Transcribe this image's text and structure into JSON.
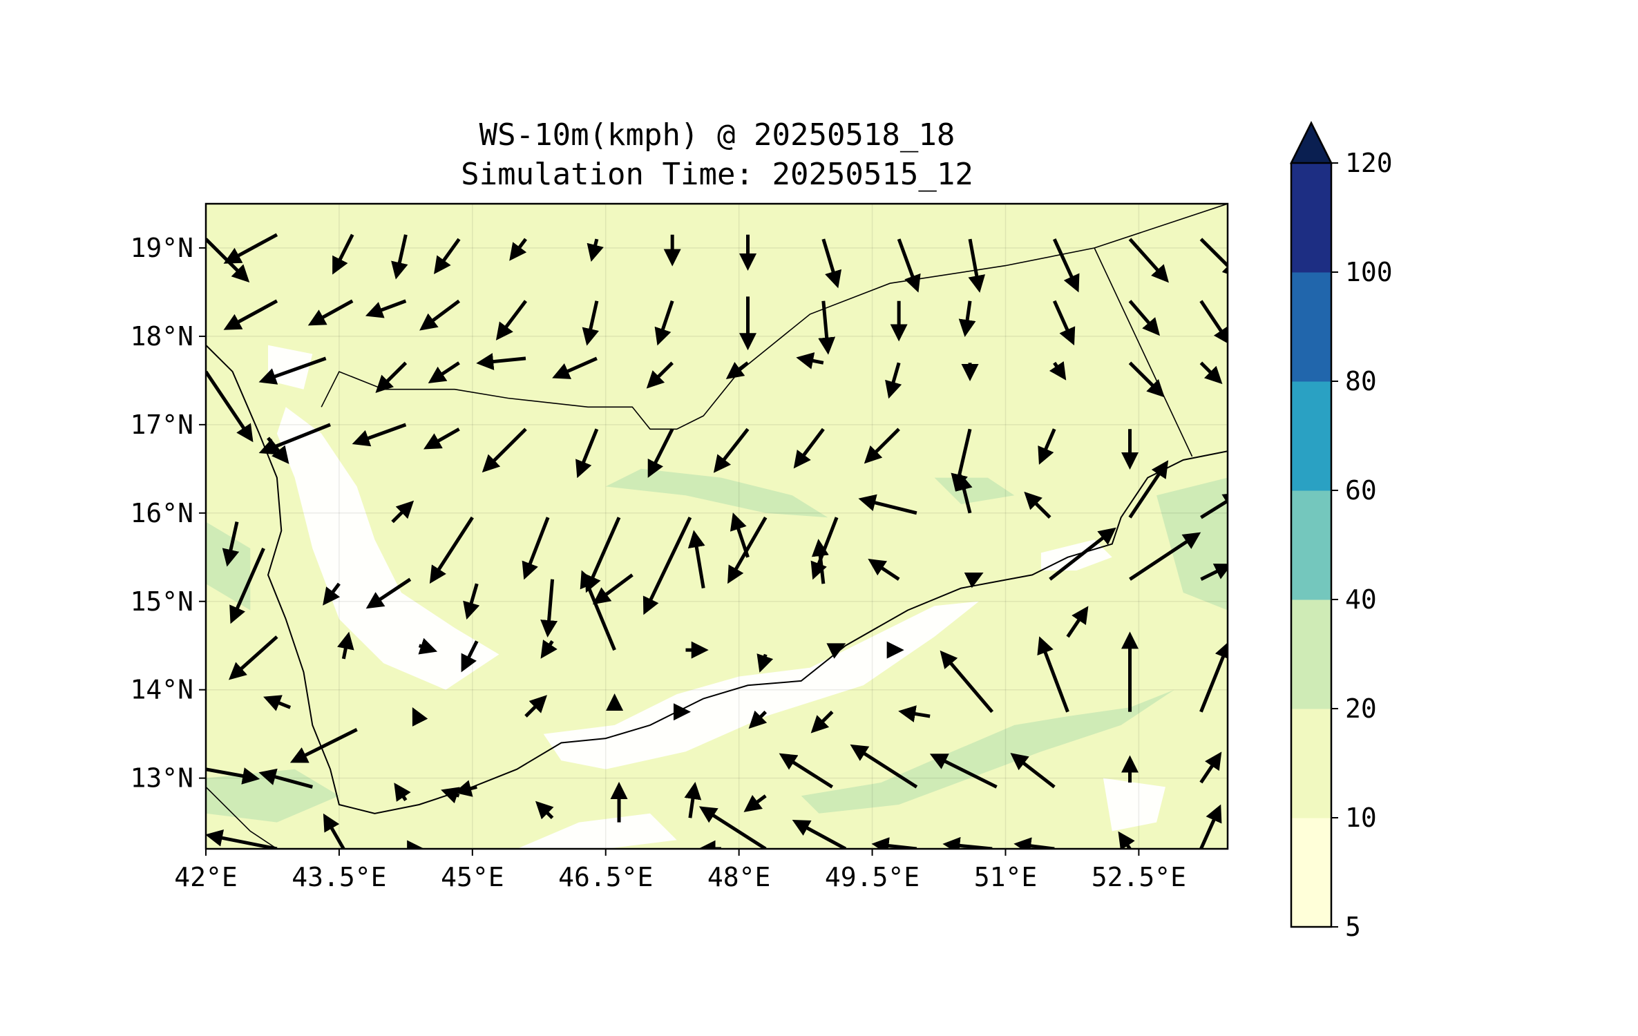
{
  "title": {
    "line1": "WS-10m(kmph) @ 20250518_18",
    "line2": "Simulation Time: 20250515_12"
  },
  "map": {
    "lon_range": [
      42.0,
      53.5
    ],
    "lat_range": [
      12.2,
      19.5
    ],
    "x_ticks": [
      {
        "value": 42.0,
        "label": "42°E"
      },
      {
        "value": 43.5,
        "label": "43.5°E"
      },
      {
        "value": 45.0,
        "label": "45°E"
      },
      {
        "value": 46.5,
        "label": "46.5°E"
      },
      {
        "value": 48.0,
        "label": "48°E"
      },
      {
        "value": 49.5,
        "label": "49.5°E"
      },
      {
        "value": 51.0,
        "label": "51°E"
      },
      {
        "value": 52.5,
        "label": "52.5°E"
      }
    ],
    "y_ticks": [
      {
        "value": 19,
        "label": "19°N"
      },
      {
        "value": 18,
        "label": "18°N"
      },
      {
        "value": 17,
        "label": "17°N"
      },
      {
        "value": 16,
        "label": "16°N"
      },
      {
        "value": 15,
        "label": "15°N"
      },
      {
        "value": 14,
        "label": "14°N"
      },
      {
        "value": 13,
        "label": "13°N"
      }
    ],
    "background_color": "#f1f9c0",
    "coastline": [
      [
        42.0,
        17.9
      ],
      [
        42.3,
        17.6
      ],
      [
        42.6,
        16.9
      ],
      [
        42.8,
        16.4
      ],
      [
        42.85,
        15.8
      ],
      [
        42.7,
        15.3
      ],
      [
        42.9,
        14.8
      ],
      [
        43.1,
        14.2
      ],
      [
        43.2,
        13.6
      ],
      [
        43.4,
        13.1
      ],
      [
        43.5,
        12.7
      ],
      [
        43.9,
        12.6
      ],
      [
        44.4,
        12.7
      ],
      [
        45.0,
        12.9
      ],
      [
        45.5,
        13.1
      ],
      [
        46.0,
        13.4
      ],
      [
        46.5,
        13.45
      ],
      [
        47.0,
        13.6
      ],
      [
        47.6,
        13.9
      ],
      [
        48.1,
        14.05
      ],
      [
        48.7,
        14.1
      ],
      [
        49.2,
        14.5
      ],
      [
        49.9,
        14.9
      ],
      [
        50.5,
        15.15
      ],
      [
        51.3,
        15.3
      ],
      [
        51.7,
        15.5
      ],
      [
        52.2,
        15.65
      ],
      [
        52.3,
        15.95
      ],
      [
        52.6,
        16.4
      ],
      [
        53.0,
        16.6
      ],
      [
        53.5,
        16.7
      ]
    ],
    "boundary_saudi": [
      [
        43.3,
        17.2
      ],
      [
        43.5,
        17.6
      ],
      [
        44.0,
        17.4
      ],
      [
        44.8,
        17.4
      ],
      [
        45.4,
        17.3
      ],
      [
        46.3,
        17.2
      ],
      [
        46.8,
        17.2
      ],
      [
        47.0,
        16.95
      ],
      [
        47.3,
        16.95
      ],
      [
        47.6,
        17.1
      ],
      [
        48.0,
        17.6
      ],
      [
        48.8,
        18.25
      ],
      [
        49.7,
        18.6
      ],
      [
        51.0,
        18.8
      ],
      [
        52.0,
        19.0
      ],
      [
        53.5,
        19.5
      ]
    ],
    "boundary_oman": [
      [
        52.0,
        19.0
      ],
      [
        53.1,
        16.64
      ]
    ],
    "boundary_eritrea": [
      [
        42.0,
        12.9
      ],
      [
        42.5,
        12.4
      ],
      [
        42.8,
        12.2
      ]
    ],
    "low_wind_color": "#ffffff",
    "low_wind_areas": [
      [
        [
          42.9,
          17.2
        ],
        [
          43.3,
          16.9
        ],
        [
          43.7,
          16.3
        ],
        [
          43.9,
          15.7
        ],
        [
          44.2,
          15.1
        ],
        [
          44.8,
          14.7
        ],
        [
          45.3,
          14.4
        ],
        [
          44.7,
          14.0
        ],
        [
          44.0,
          14.3
        ],
        [
          43.5,
          14.8
        ],
        [
          43.2,
          15.6
        ],
        [
          43.0,
          16.4
        ],
        [
          42.8,
          16.9
        ]
      ],
      [
        [
          45.8,
          13.5
        ],
        [
          46.6,
          13.6
        ],
        [
          47.3,
          13.95
        ],
        [
          48.0,
          14.15
        ],
        [
          48.8,
          14.25
        ],
        [
          49.5,
          14.6
        ],
        [
          50.2,
          14.95
        ],
        [
          50.7,
          15.0
        ],
        [
          50.2,
          14.6
        ],
        [
          49.4,
          14.05
        ],
        [
          48.3,
          13.7
        ],
        [
          47.4,
          13.3
        ],
        [
          46.5,
          13.1
        ],
        [
          46.0,
          13.2
        ]
      ],
      [
        [
          51.4,
          15.55
        ],
        [
          52.0,
          15.7
        ],
        [
          52.2,
          15.5
        ],
        [
          51.8,
          15.35
        ],
        [
          51.4,
          15.35
        ]
      ],
      [
        [
          45.5,
          12.2
        ],
        [
          46.2,
          12.5
        ],
        [
          47.0,
          12.6
        ],
        [
          47.3,
          12.3
        ],
        [
          46.5,
          12.2
        ]
      ],
      [
        [
          52.1,
          13.0
        ],
        [
          52.8,
          12.9
        ],
        [
          52.7,
          12.5
        ],
        [
          52.2,
          12.4
        ]
      ],
      [
        [
          42.7,
          17.9
        ],
        [
          43.2,
          17.8
        ],
        [
          43.1,
          17.4
        ],
        [
          42.7,
          17.5
        ]
      ]
    ],
    "mid_wind_color": "#cfebb6",
    "mid_wind_areas": [
      [
        [
          52.7,
          16.2
        ],
        [
          53.5,
          16.4
        ],
        [
          53.5,
          14.9
        ],
        [
          53.0,
          15.1
        ]
      ],
      [
        [
          48.7,
          12.8
        ],
        [
          49.6,
          12.95
        ],
        [
          50.4,
          13.3
        ],
        [
          51.1,
          13.6
        ],
        [
          51.7,
          13.7
        ],
        [
          52.4,
          13.8
        ],
        [
          52.9,
          14.0
        ],
        [
          52.3,
          13.6
        ],
        [
          51.4,
          13.3
        ],
        [
          50.6,
          13.0
        ],
        [
          49.8,
          12.7
        ],
        [
          48.9,
          12.6
        ]
      ],
      [
        [
          42.0,
          15.9
        ],
        [
          42.5,
          15.6
        ],
        [
          42.5,
          14.9
        ],
        [
          42.0,
          15.2
        ]
      ],
      [
        [
          42.0,
          13.0
        ],
        [
          43.0,
          13.1
        ],
        [
          43.5,
          12.8
        ],
        [
          42.8,
          12.5
        ],
        [
          42.0,
          12.6
        ]
      ],
      [
        [
          46.5,
          16.3
        ],
        [
          47.4,
          16.2
        ],
        [
          48.3,
          16.0
        ],
        [
          49.0,
          15.95
        ],
        [
          48.6,
          16.2
        ],
        [
          47.8,
          16.4
        ],
        [
          46.9,
          16.5
        ]
      ],
      [
        [
          50.2,
          16.4
        ],
        [
          50.8,
          16.4
        ],
        [
          51.1,
          16.2
        ],
        [
          50.5,
          16.1
        ]
      ]
    ],
    "arrow_color": "#000000",
    "wind_vectors": [
      [
        42.0,
        19.1,
        0.45,
        -0.45
      ],
      [
        42.8,
        19.15,
        -0.55,
        -0.3
      ],
      [
        43.65,
        19.15,
        -0.2,
        -0.4
      ],
      [
        44.25,
        19.15,
        -0.1,
        -0.45
      ],
      [
        44.85,
        19.1,
        -0.25,
        -0.35
      ],
      [
        45.6,
        19.1,
        -0.15,
        -0.2
      ],
      [
        46.4,
        19.1,
        -0.05,
        -0.2
      ],
      [
        47.25,
        19.15,
        0.0,
        -0.3
      ],
      [
        48.1,
        19.15,
        0.0,
        -0.35
      ],
      [
        48.95,
        19.1,
        0.15,
        -0.5
      ],
      [
        49.8,
        19.1,
        0.2,
        -0.55
      ],
      [
        50.6,
        19.1,
        0.1,
        -0.55
      ],
      [
        51.55,
        19.1,
        0.25,
        -0.55
      ],
      [
        52.4,
        19.1,
        0.4,
        -0.45
      ],
      [
        53.2,
        19.1,
        0.4,
        -0.4
      ],
      [
        42.8,
        18.4,
        -0.55,
        -0.3
      ],
      [
        43.65,
        18.4,
        -0.45,
        -0.25
      ],
      [
        44.25,
        18.4,
        -0.4,
        -0.15
      ],
      [
        44.85,
        18.4,
        -0.4,
        -0.3
      ],
      [
        45.6,
        18.4,
        -0.3,
        -0.4
      ],
      [
        46.4,
        18.4,
        -0.1,
        -0.45
      ],
      [
        47.25,
        18.4,
        -0.15,
        -0.45
      ],
      [
        48.1,
        18.45,
        0.0,
        -0.55
      ],
      [
        48.95,
        18.4,
        0.05,
        -0.55
      ],
      [
        49.8,
        18.4,
        0.0,
        -0.4
      ],
      [
        50.6,
        18.4,
        -0.05,
        -0.35
      ],
      [
        51.55,
        18.4,
        0.2,
        -0.45
      ],
      [
        52.4,
        18.4,
        0.3,
        -0.35
      ],
      [
        53.2,
        18.4,
        0.3,
        -0.45
      ],
      [
        43.35,
        17.75,
        -0.7,
        -0.25
      ],
      [
        44.25,
        17.7,
        -0.3,
        -0.3
      ],
      [
        44.85,
        17.7,
        -0.3,
        -0.2
      ],
      [
        45.6,
        17.75,
        -0.5,
        -0.05
      ],
      [
        46.4,
        17.75,
        -0.45,
        -0.2
      ],
      [
        47.25,
        17.7,
        -0.25,
        -0.25
      ],
      [
        48.1,
        17.7,
        -0.2,
        -0.15
      ],
      [
        48.95,
        17.7,
        -0.25,
        0.05
      ],
      [
        49.8,
        17.7,
        -0.1,
        -0.35
      ],
      [
        50.6,
        17.7,
        0.0,
        -0.15
      ],
      [
        51.55,
        17.7,
        0.1,
        -0.15
      ],
      [
        52.4,
        17.7,
        0.35,
        -0.35
      ],
      [
        53.2,
        17.7,
        0.2,
        -0.2
      ],
      [
        42.0,
        17.6,
        0.5,
        -0.75
      ],
      [
        43.4,
        17.0,
        -0.75,
        -0.3
      ],
      [
        44.25,
        17.0,
        -0.55,
        -0.2
      ],
      [
        44.85,
        16.95,
        -0.35,
        -0.2
      ],
      [
        45.6,
        16.95,
        -0.45,
        -0.45
      ],
      [
        46.4,
        16.95,
        -0.2,
        -0.5
      ],
      [
        47.25,
        16.95,
        -0.25,
        -0.5
      ],
      [
        48.1,
        16.95,
        -0.35,
        -0.45
      ],
      [
        48.95,
        16.95,
        -0.3,
        -0.4
      ],
      [
        49.8,
        16.95,
        -0.35,
        -0.35
      ],
      [
        50.6,
        16.95,
        -0.15,
        -0.65
      ],
      [
        51.55,
        16.95,
        -0.15,
        -0.35
      ],
      [
        52.4,
        16.95,
        0.0,
        -0.4
      ],
      [
        42.7,
        16.85,
        0.2,
        -0.25
      ],
      [
        42.35,
        15.9,
        -0.1,
        -0.45
      ],
      [
        44.1,
        15.9,
        0.2,
        0.2
      ],
      [
        45.0,
        15.95,
        -0.45,
        -0.7
      ],
      [
        45.85,
        15.95,
        -0.25,
        -0.65
      ],
      [
        46.65,
        15.95,
        -0.35,
        -0.8
      ],
      [
        47.45,
        15.95,
        -0.5,
        -1.05
      ],
      [
        48.3,
        15.95,
        -0.4,
        -0.7
      ],
      [
        49.1,
        15.95,
        -0.25,
        -0.65
      ],
      [
        50.0,
        16.0,
        -0.6,
        0.15
      ],
      [
        50.6,
        16.0,
        -0.1,
        0.4
      ],
      [
        51.5,
        15.95,
        -0.25,
        0.25
      ],
      [
        52.4,
        15.95,
        0.4,
        0.6
      ],
      [
        53.2,
        15.95,
        0.4,
        0.25
      ],
      [
        42.65,
        15.6,
        -0.35,
        -0.8
      ],
      [
        43.5,
        15.2,
        -0.15,
        -0.2
      ],
      [
        44.3,
        15.25,
        -0.45,
        -0.3
      ],
      [
        45.05,
        15.2,
        -0.1,
        -0.35
      ],
      [
        45.9,
        15.25,
        -0.05,
        -0.6
      ],
      [
        46.8,
        15.3,
        -0.4,
        -0.3
      ],
      [
        48.1,
        15.5,
        -0.15,
        0.45
      ],
      [
        47.6,
        15.15,
        -0.1,
        0.6
      ],
      [
        48.95,
        15.2,
        -0.05,
        0.45
      ],
      [
        49.8,
        15.25,
        -0.3,
        0.2
      ],
      [
        50.6,
        15.25,
        0.1,
        0.05
      ],
      [
        51.5,
        15.25,
        0.7,
        0.55
      ],
      [
        52.4,
        15.25,
        0.75,
        0.5
      ],
      [
        53.2,
        15.25,
        0.3,
        0.15
      ],
      [
        42.8,
        14.6,
        -0.5,
        -0.45
      ],
      [
        43.55,
        14.35,
        0.05,
        0.25
      ],
      [
        44.4,
        14.5,
        0.15,
        -0.05
      ],
      [
        45.05,
        14.55,
        -0.15,
        -0.3
      ],
      [
        45.9,
        14.55,
        -0.1,
        -0.15
      ],
      [
        46.6,
        14.45,
        -0.35,
        0.85
      ],
      [
        47.4,
        14.45,
        0.2,
        0.0
      ],
      [
        48.3,
        14.4,
        -0.05,
        -0.15
      ],
      [
        49.05,
        14.45,
        0.1,
        0.05
      ],
      [
        49.8,
        14.45,
        0.0,
        0.0
      ],
      [
        50.85,
        13.75,
        -0.55,
        0.65
      ],
      [
        51.7,
        13.75,
        -0.3,
        0.8
      ],
      [
        51.7,
        14.6,
        0.2,
        0.3
      ],
      [
        52.4,
        13.75,
        0.0,
        0.85
      ],
      [
        53.2,
        13.75,
        0.3,
        0.75
      ],
      [
        42.95,
        13.8,
        -0.25,
        0.1
      ],
      [
        43.7,
        13.55,
        -0.7,
        -0.35
      ],
      [
        44.4,
        13.65,
        -0.05,
        0.1
      ],
      [
        45.6,
        13.7,
        0.2,
        0.2
      ],
      [
        46.6,
        13.85,
        0.0,
        0.05
      ],
      [
        47.4,
        13.75,
        0.0,
        0.0
      ],
      [
        48.3,
        13.75,
        -0.15,
        -0.15
      ],
      [
        49.05,
        13.75,
        -0.2,
        -0.2
      ],
      [
        50.15,
        13.7,
        -0.3,
        0.05
      ],
      [
        43.2,
        12.9,
        -0.55,
        0.15
      ],
      [
        44.25,
        12.75,
        -0.1,
        0.15
      ],
      [
        44.85,
        12.8,
        -0.15,
        0.05
      ],
      [
        45.05,
        12.9,
        -0.2,
        -0.05
      ],
      [
        45.9,
        12.55,
        -0.15,
        0.15
      ],
      [
        46.65,
        12.5,
        0.0,
        0.4
      ],
      [
        47.45,
        12.55,
        0.05,
        0.35
      ],
      [
        48.3,
        12.8,
        -0.2,
        -0.15
      ],
      [
        49.05,
        12.9,
        -0.55,
        0.35
      ],
      [
        50.0,
        12.9,
        -0.7,
        0.45
      ],
      [
        50.9,
        12.9,
        -0.7,
        0.35
      ],
      [
        51.55,
        12.9,
        -0.45,
        0.35
      ],
      [
        52.4,
        12.95,
        0.0,
        0.25
      ],
      [
        53.2,
        12.95,
        0.2,
        0.3
      ],
      [
        42.0,
        13.1,
        0.55,
        -0.1
      ],
      [
        42.8,
        12.2,
        -0.75,
        0.15
      ],
      [
        43.55,
        12.2,
        -0.2,
        0.35
      ],
      [
        44.4,
        12.2,
        0.0,
        0.0
      ],
      [
        47.8,
        12.2,
        -0.2,
        0.0
      ],
      [
        48.3,
        12.2,
        -0.7,
        0.45
      ],
      [
        49.2,
        12.2,
        -0.55,
        0.3
      ],
      [
        50.0,
        12.2,
        -0.45,
        0.05
      ],
      [
        50.85,
        12.2,
        -0.5,
        0.05
      ],
      [
        51.55,
        12.2,
        -0.4,
        0.05
      ],
      [
        52.4,
        12.2,
        -0.1,
        0.15
      ],
      [
        53.2,
        12.2,
        0.2,
        0.45
      ]
    ]
  },
  "colorbar": {
    "levels": [
      {
        "label": "5",
        "value": 5
      },
      {
        "label": "10",
        "value": 10
      },
      {
        "label": "20",
        "value": 20
      },
      {
        "label": "40",
        "value": 40
      },
      {
        "label": "60",
        "value": 60
      },
      {
        "label": "80",
        "value": 80
      },
      {
        "label": "100",
        "value": 100
      },
      {
        "label": "120",
        "value": 120
      }
    ],
    "colors": [
      "#ffffd9",
      "#f1f9c0",
      "#cfebb6",
      "#74c7bd",
      "#2aa1c3",
      "#2166ac",
      "#1d2e83"
    ],
    "extend_color": "#0a1f51"
  }
}
